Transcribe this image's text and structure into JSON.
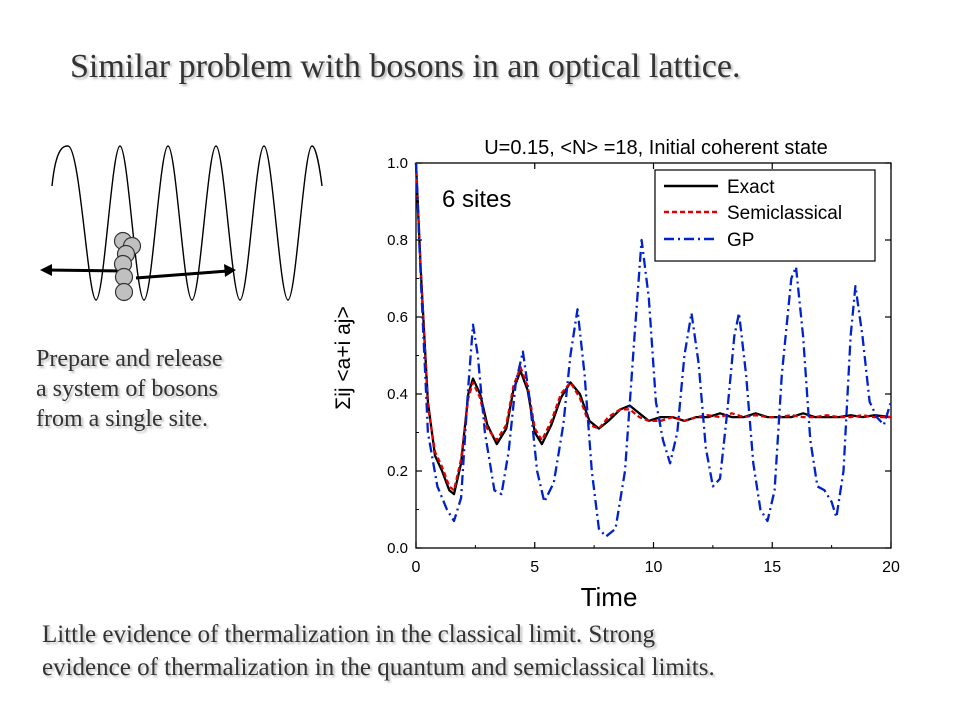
{
  "slide": {
    "title": "Similar problem with bosons in an optical lattice.",
    "prepare_lines": [
      "Prepare and release",
      "a system of bosons",
      "from a single site."
    ],
    "conclusion_lines": [
      "Little evidence of thermalization in the classical limit. Strong",
      "evidence of thermalization in the quantum and semiclassical  limits."
    ]
  },
  "chart_data": {
    "type": "line",
    "title": "U=0.15, <N> =18, Initial coherent state",
    "annotation": "6 sites",
    "xlabel": "Time",
    "ylabel": "Σij <a+i aj>",
    "xlim": [
      0,
      20
    ],
    "ylim": [
      0.0,
      1.0
    ],
    "xticks": [
      "0",
      "5",
      "10",
      "15",
      "20"
    ],
    "yticks": [
      "0.0",
      "0.2",
      "0.4",
      "0.6",
      "0.8",
      "1.0"
    ],
    "legend_position": "top-right",
    "series": [
      {
        "name": "Exact",
        "color": "#000000",
        "dash": "solid",
        "points": [
          [
            0,
            1.0
          ],
          [
            0.2,
            0.72
          ],
          [
            0.5,
            0.38
          ],
          [
            0.8,
            0.24
          ],
          [
            1.1,
            0.2
          ],
          [
            1.4,
            0.15
          ],
          [
            1.6,
            0.14
          ],
          [
            1.9,
            0.22
          ],
          [
            2.2,
            0.4
          ],
          [
            2.4,
            0.44
          ],
          [
            2.7,
            0.4
          ],
          [
            3.0,
            0.32
          ],
          [
            3.4,
            0.27
          ],
          [
            3.8,
            0.31
          ],
          [
            4.1,
            0.41
          ],
          [
            4.4,
            0.46
          ],
          [
            4.7,
            0.41
          ],
          [
            5.0,
            0.3
          ],
          [
            5.3,
            0.27
          ],
          [
            5.7,
            0.32
          ],
          [
            6.1,
            0.39
          ],
          [
            6.5,
            0.43
          ],
          [
            6.9,
            0.4
          ],
          [
            7.3,
            0.33
          ],
          [
            7.7,
            0.31
          ],
          [
            8.1,
            0.33
          ],
          [
            8.6,
            0.36
          ],
          [
            9.0,
            0.37
          ],
          [
            9.4,
            0.35
          ],
          [
            9.8,
            0.33
          ],
          [
            10.3,
            0.34
          ],
          [
            10.8,
            0.34
          ],
          [
            11.3,
            0.33
          ],
          [
            11.8,
            0.34
          ],
          [
            12.3,
            0.34
          ],
          [
            12.8,
            0.35
          ],
          [
            13.3,
            0.34
          ],
          [
            13.8,
            0.34
          ],
          [
            14.3,
            0.35
          ],
          [
            14.8,
            0.34
          ],
          [
            15.3,
            0.34
          ],
          [
            15.8,
            0.34
          ],
          [
            16.3,
            0.35
          ],
          [
            16.8,
            0.34
          ],
          [
            17.3,
            0.34
          ],
          [
            17.8,
            0.34
          ],
          [
            18.3,
            0.345
          ],
          [
            18.8,
            0.34
          ],
          [
            19.3,
            0.345
          ],
          [
            20,
            0.34
          ]
        ]
      },
      {
        "name": "Semiclassical",
        "color": "#e00000",
        "dash": "dash",
        "points": [
          [
            0,
            1.0
          ],
          [
            0.2,
            0.72
          ],
          [
            0.5,
            0.37
          ],
          [
            0.8,
            0.25
          ],
          [
            1.1,
            0.21
          ],
          [
            1.4,
            0.16
          ],
          [
            1.6,
            0.15
          ],
          [
            1.9,
            0.23
          ],
          [
            2.2,
            0.39
          ],
          [
            2.4,
            0.43
          ],
          [
            2.7,
            0.39
          ],
          [
            3.0,
            0.31
          ],
          [
            3.4,
            0.28
          ],
          [
            3.8,
            0.32
          ],
          [
            4.1,
            0.42
          ],
          [
            4.4,
            0.47
          ],
          [
            4.7,
            0.42
          ],
          [
            5.0,
            0.31
          ],
          [
            5.3,
            0.28
          ],
          [
            5.7,
            0.33
          ],
          [
            6.1,
            0.4
          ],
          [
            6.5,
            0.43
          ],
          [
            6.9,
            0.39
          ],
          [
            7.3,
            0.32
          ],
          [
            7.7,
            0.31
          ],
          [
            8.1,
            0.34
          ],
          [
            8.6,
            0.36
          ],
          [
            9.0,
            0.36
          ],
          [
            9.4,
            0.34
          ],
          [
            9.8,
            0.33
          ],
          [
            10.3,
            0.33
          ],
          [
            10.8,
            0.34
          ],
          [
            11.3,
            0.33
          ],
          [
            11.8,
            0.34
          ],
          [
            12.3,
            0.345
          ],
          [
            12.8,
            0.34
          ],
          [
            13.3,
            0.35
          ],
          [
            13.8,
            0.34
          ],
          [
            14.3,
            0.345
          ],
          [
            14.8,
            0.34
          ],
          [
            15.3,
            0.34
          ],
          [
            15.8,
            0.345
          ],
          [
            16.3,
            0.34
          ],
          [
            16.8,
            0.34
          ],
          [
            17.3,
            0.345
          ],
          [
            17.8,
            0.34
          ],
          [
            18.3,
            0.34
          ],
          [
            18.8,
            0.345
          ],
          [
            19.3,
            0.34
          ],
          [
            20,
            0.34
          ]
        ]
      },
      {
        "name": "GP",
        "color": "#0022cc",
        "dash": "dashdot",
        "points": [
          [
            0,
            1.0
          ],
          [
            0.2,
            0.7
          ],
          [
            0.5,
            0.3
          ],
          [
            0.9,
            0.16
          ],
          [
            1.3,
            0.1
          ],
          [
            1.6,
            0.07
          ],
          [
            1.9,
            0.13
          ],
          [
            2.2,
            0.42
          ],
          [
            2.4,
            0.58
          ],
          [
            2.6,
            0.5
          ],
          [
            2.9,
            0.3
          ],
          [
            3.3,
            0.15
          ],
          [
            3.6,
            0.14
          ],
          [
            3.9,
            0.25
          ],
          [
            4.2,
            0.43
          ],
          [
            4.5,
            0.51
          ],
          [
            4.8,
            0.38
          ],
          [
            5.1,
            0.2
          ],
          [
            5.4,
            0.12
          ],
          [
            5.8,
            0.17
          ],
          [
            6.2,
            0.32
          ],
          [
            6.5,
            0.5
          ],
          [
            6.8,
            0.62
          ],
          [
            7.1,
            0.45
          ],
          [
            7.4,
            0.2
          ],
          [
            7.7,
            0.05
          ],
          [
            8.0,
            0.03
          ],
          [
            8.4,
            0.05
          ],
          [
            8.8,
            0.2
          ],
          [
            9.2,
            0.55
          ],
          [
            9.5,
            0.8
          ],
          [
            9.8,
            0.65
          ],
          [
            10.1,
            0.38
          ],
          [
            10.4,
            0.28
          ],
          [
            10.7,
            0.22
          ],
          [
            11.0,
            0.3
          ],
          [
            11.3,
            0.5
          ],
          [
            11.6,
            0.61
          ],
          [
            11.9,
            0.48
          ],
          [
            12.2,
            0.26
          ],
          [
            12.5,
            0.16
          ],
          [
            12.8,
            0.18
          ],
          [
            13.1,
            0.35
          ],
          [
            13.4,
            0.55
          ],
          [
            13.6,
            0.61
          ],
          [
            13.9,
            0.45
          ],
          [
            14.2,
            0.22
          ],
          [
            14.5,
            0.1
          ],
          [
            14.8,
            0.07
          ],
          [
            15.1,
            0.15
          ],
          [
            15.4,
            0.45
          ],
          [
            15.8,
            0.7
          ],
          [
            16.0,
            0.73
          ],
          [
            16.3,
            0.55
          ],
          [
            16.6,
            0.28
          ],
          [
            16.9,
            0.16
          ],
          [
            17.2,
            0.15
          ],
          [
            17.5,
            0.12
          ],
          [
            17.7,
            0.08
          ],
          [
            18.0,
            0.2
          ],
          [
            18.3,
            0.55
          ],
          [
            18.5,
            0.68
          ],
          [
            18.8,
            0.55
          ],
          [
            19.1,
            0.38
          ],
          [
            19.4,
            0.34
          ],
          [
            19.7,
            0.32
          ],
          [
            20,
            0.38
          ]
        ]
      }
    ]
  }
}
